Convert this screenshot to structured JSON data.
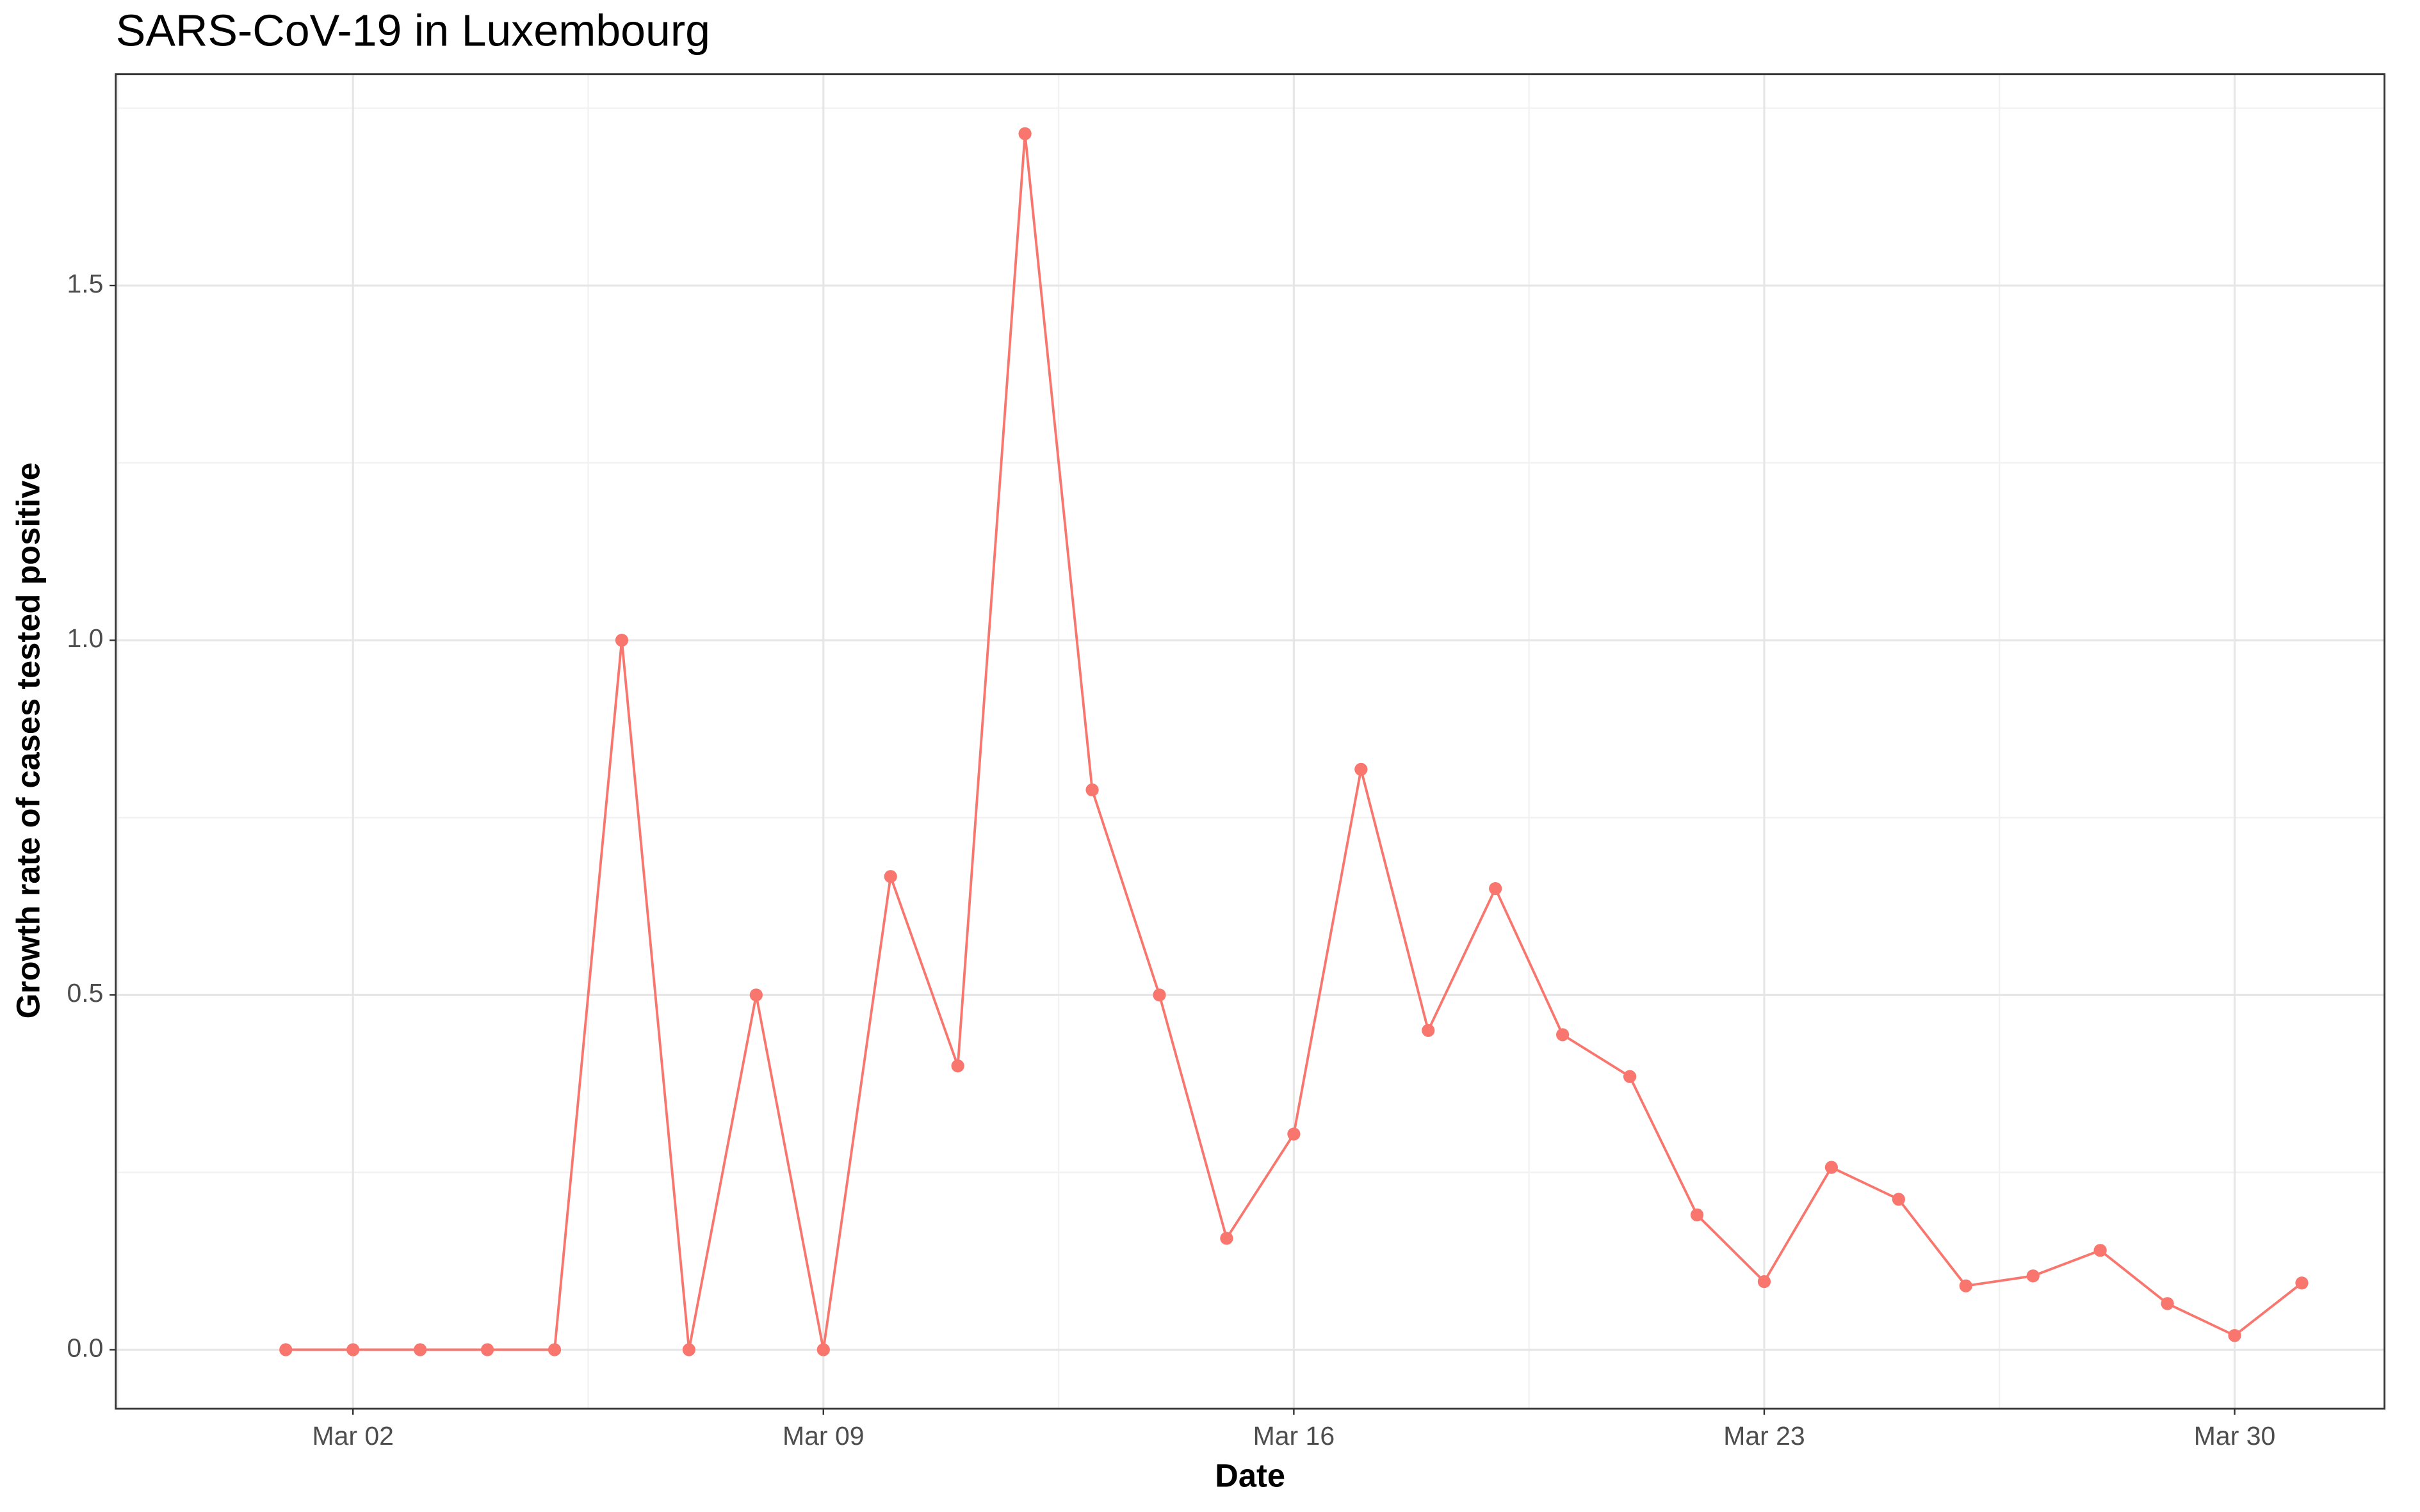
{
  "chart_data": {
    "type": "line",
    "title": "SARS-CoV-19 in Luxembourg",
    "x_label": "Date",
    "y_label": "Growth rate of cases tested positive",
    "x": [
      1,
      2,
      3,
      4,
      5,
      6,
      7,
      8,
      9,
      10,
      11,
      12,
      13,
      14,
      15,
      16,
      17,
      18,
      19,
      20,
      21,
      22,
      23,
      24,
      25,
      26,
      27,
      28,
      29,
      30,
      31
    ],
    "series": [
      {
        "name": "Luxembourg",
        "color": "#F8766D",
        "values": [
          0,
          0,
          0,
          0,
          0,
          1.0,
          0,
          0.5,
          0,
          0.667,
          0.4,
          1.714,
          0.789,
          0.5,
          0.157,
          0.304,
          0.818,
          0.45,
          0.65,
          0.444,
          0.385,
          0.19,
          0.096,
          0.257,
          0.212,
          0.09,
          0.104,
          0.14,
          0.065,
          0.02,
          0.094
        ]
      }
    ],
    "xlim": [
      -1.53,
      32.23
    ],
    "xticks": [
      {
        "value": 2,
        "label": "Mar 02"
      },
      {
        "value": 9,
        "label": "Mar 09"
      },
      {
        "value": 16,
        "label": "Mar 16"
      },
      {
        "value": 23,
        "label": "Mar 23"
      },
      {
        "value": 30,
        "label": "Mar 30"
      }
    ],
    "ylim": [
      -0.083,
      1.798
    ],
    "yticks": [
      {
        "value": 0,
        "label": "0.0"
      },
      {
        "value": 0.5,
        "label": "0.5"
      },
      {
        "value": 1,
        "label": "1.0"
      },
      {
        "value": 1.5,
        "label": "1.5"
      }
    ],
    "grid": true
  }
}
